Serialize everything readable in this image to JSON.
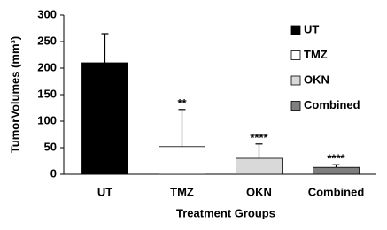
{
  "chart_data": {
    "type": "bar",
    "x_label": "Treatment Groups",
    "y_label": "TumorVolumes (mm³)",
    "categories": [
      "UT",
      "TMZ",
      "OKN",
      "Combined"
    ],
    "values": [
      210,
      52,
      30,
      13
    ],
    "errors": [
      55,
      70,
      27,
      5
    ],
    "significance": [
      null,
      "**",
      "****",
      "****"
    ],
    "colors": [
      "#000000",
      "#ffffff",
      "#d9d9d9",
      "#7f7f7f"
    ],
    "ylim": [
      0,
      300
    ],
    "yticks": [
      0,
      50,
      100,
      150,
      200,
      250,
      300
    ],
    "grid": false,
    "legend": "upper right"
  }
}
